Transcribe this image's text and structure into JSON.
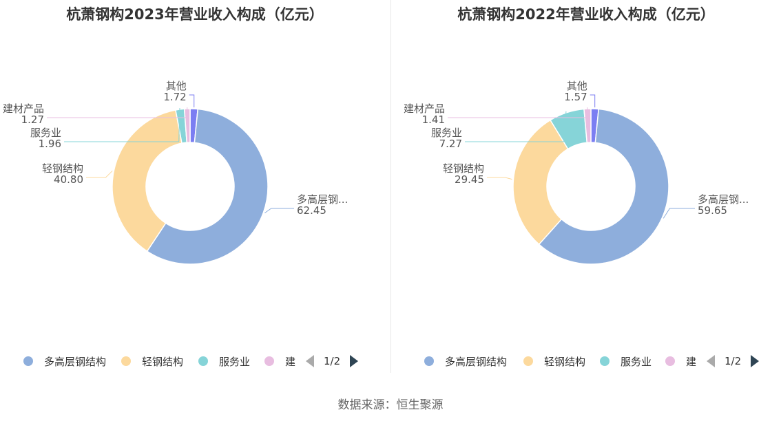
{
  "chart_data": [
    {
      "type": "pie",
      "title": "杭萧钢构2023年营业收入构成（亿元）",
      "categories": [
        "多高层钢结构",
        "轻钢结构",
        "服务业",
        "建材产品",
        "其他"
      ],
      "values": [
        62.45,
        40.8,
        1.96,
        1.27,
        1.72
      ],
      "slice_labels": [
        "多高层钢...",
        "轻钢结构",
        "服务业",
        "建材产品",
        "其他"
      ],
      "value_labels": [
        "62.45",
        "40.80",
        "1.96",
        "1.27",
        "1.72"
      ],
      "colors": [
        "#8eaedc",
        "#fcd99d",
        "#86d4d8",
        "#e8bde0",
        "#7b7ef2"
      ],
      "legend": {
        "position": "bottom",
        "items": [
          "多高层钢结构",
          "轻钢结构",
          "服务业",
          "建"
        ],
        "page": "1/2"
      }
    },
    {
      "type": "pie",
      "title": "杭萧钢构2022年营业收入构成（亿元）",
      "categories": [
        "多高层钢结构",
        "轻钢结构",
        "服务业",
        "建材产品",
        "其他"
      ],
      "values": [
        59.65,
        29.45,
        7.27,
        1.41,
        1.57
      ],
      "slice_labels": [
        "多高层钢...",
        "轻钢结构",
        "服务业",
        "建材产品",
        "其他"
      ],
      "value_labels": [
        "59.65",
        "29.45",
        "7.27",
        "1.41",
        "1.57"
      ],
      "colors": [
        "#8eaedc",
        "#fcd99d",
        "#86d4d8",
        "#e8bde0",
        "#7b7ef2"
      ],
      "legend": {
        "position": "bottom",
        "items": [
          "多高层钢结构",
          "轻钢结构",
          "服务业",
          "建"
        ],
        "page": "1/2"
      }
    }
  ],
  "footer": {
    "source": "数据来源：恒生聚源"
  }
}
